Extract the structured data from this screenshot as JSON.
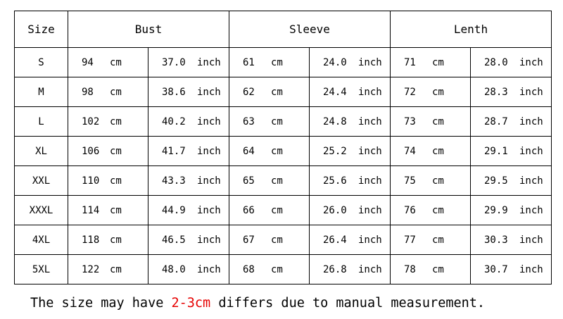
{
  "headers": {
    "size": "Size",
    "bust": "Bust",
    "sleeve": "Sleeve",
    "length": "Lenth"
  },
  "units": {
    "cm": "cm",
    "inch": "inch"
  },
  "rows": [
    {
      "size": "S",
      "bust_cm": "94",
      "bust_in": "37.0",
      "sleeve_cm": "61",
      "sleeve_in": "24.0",
      "length_cm": "71",
      "length_in": "28.0"
    },
    {
      "size": "M",
      "bust_cm": "98",
      "bust_in": "38.6",
      "sleeve_cm": "62",
      "sleeve_in": "24.4",
      "length_cm": "72",
      "length_in": "28.3"
    },
    {
      "size": "L",
      "bust_cm": "102",
      "bust_in": "40.2",
      "sleeve_cm": "63",
      "sleeve_in": "24.8",
      "length_cm": "73",
      "length_in": "28.7"
    },
    {
      "size": "XL",
      "bust_cm": "106",
      "bust_in": "41.7",
      "sleeve_cm": "64",
      "sleeve_in": "25.2",
      "length_cm": "74",
      "length_in": "29.1"
    },
    {
      "size": "XXL",
      "bust_cm": "110",
      "bust_in": "43.3",
      "sleeve_cm": "65",
      "sleeve_in": "25.6",
      "length_cm": "75",
      "length_in": "29.5"
    },
    {
      "size": "XXXL",
      "bust_cm": "114",
      "bust_in": "44.9",
      "sleeve_cm": "66",
      "sleeve_in": "26.0",
      "length_cm": "76",
      "length_in": "29.9"
    },
    {
      "size": "4XL",
      "bust_cm": "118",
      "bust_in": "46.5",
      "sleeve_cm": "67",
      "sleeve_in": "26.4",
      "length_cm": "77",
      "length_in": "30.3"
    },
    {
      "size": "5XL",
      "bust_cm": "122",
      "bust_in": "48.0",
      "sleeve_cm": "68",
      "sleeve_in": "26.8",
      "length_cm": "78",
      "length_in": "30.7"
    }
  ],
  "note": {
    "before": "The size may have ",
    "highlight": "2-3cm",
    "after": " differs due to manual measurement."
  },
  "colors": {
    "highlight": "#e60000",
    "text": "#000000",
    "border": "#000000"
  }
}
